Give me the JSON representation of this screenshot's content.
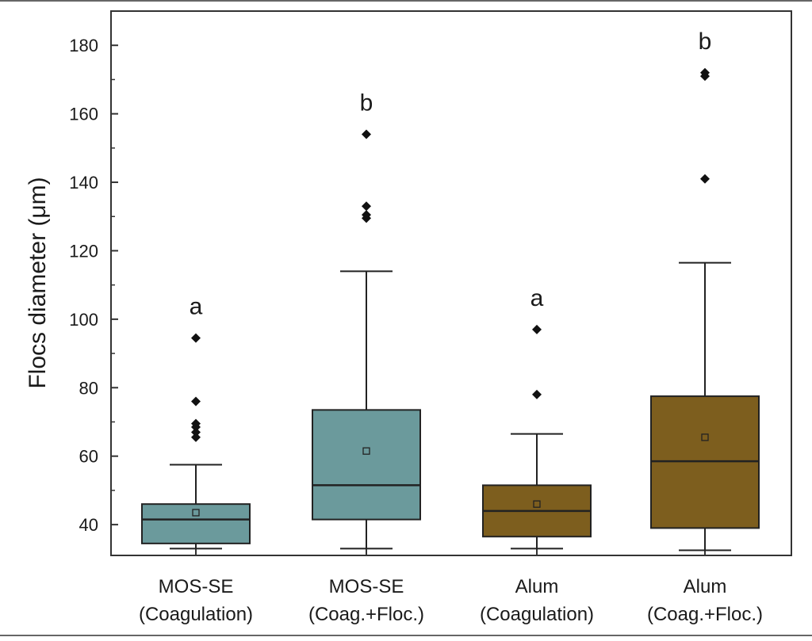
{
  "chart_data": {
    "type": "box",
    "ylabel": "Flocs diameter (μm)",
    "ylim": [
      31,
      190
    ],
    "yticks": [
      40,
      60,
      80,
      100,
      120,
      140,
      160,
      180
    ],
    "categories": [
      [
        "MOS-SE",
        "(Coagulation)"
      ],
      [
        "MOS-SE",
        "(Coag.+Floc.)"
      ],
      [
        "Alum",
        "(Coagulation)"
      ],
      [
        "Alum",
        "(Coag.+Floc.)"
      ]
    ],
    "boxes": [
      {
        "whisker_low": 33,
        "q1": 34.5,
        "median": 41.5,
        "q3": 46,
        "whisker_high": 57.5,
        "mean": 43.5,
        "outliers": [
          65.5,
          67,
          68.5,
          69.5,
          76,
          94.5
        ],
        "letter": "a",
        "color": "#6b9a9c"
      },
      {
        "whisker_low": 33,
        "q1": 41.5,
        "median": 51.5,
        "q3": 73.5,
        "whisker_high": 114,
        "mean": 61.5,
        "outliers": [
          129.5,
          130.5,
          133,
          154
        ],
        "letter": "b",
        "color": "#6b9a9c"
      },
      {
        "whisker_low": 33,
        "q1": 36.5,
        "median": 44,
        "q3": 51.5,
        "whisker_high": 66.5,
        "mean": 46,
        "outliers": [
          78,
          97
        ],
        "letter": "a",
        "color": "#7d5e1e"
      },
      {
        "whisker_low": 32.5,
        "q1": 39,
        "median": 58.5,
        "q3": 77.5,
        "whisker_high": 116.5,
        "mean": 65.5,
        "outliers": [
          141,
          171,
          172
        ],
        "letter": "b",
        "color": "#7d5e1e"
      }
    ],
    "grid": false,
    "legend": "none"
  }
}
